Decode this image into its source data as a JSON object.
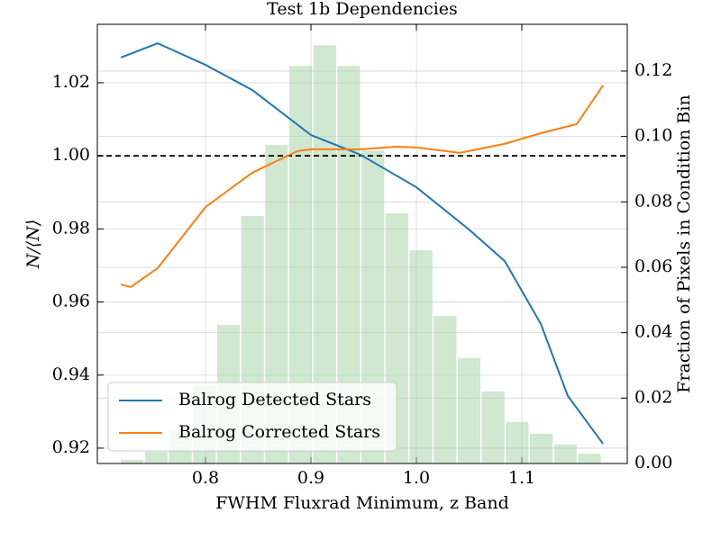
{
  "chart_data": {
    "type": "bar-line",
    "title": "Test 1b Dependencies",
    "x_label": "FWHM Fluxrad Minimum, z Band",
    "y_label": "N/⟨N⟩",
    "y2_label": "Fraction of Pixels in Condition Bin",
    "xlim": [
      0.6974,
      1.2
    ],
    "xticks": [
      0.8,
      0.9,
      {
        "value": 1,
        "label": "1.0"
      },
      1.1
    ],
    "ylim": [
      0.9158,
      1.036
    ],
    "yticks": [
      0.92,
      0.94,
      0.96,
      0.98,
      {
        "value": 1,
        "label": "1.00"
      },
      1.02
    ],
    "y2lim": [
      0,
      0.1343
    ],
    "y2ticks": [
      {
        "value": 0,
        "label": "0.00"
      },
      0.02,
      0.04,
      0.06,
      0.08,
      {
        "value": 0.1,
        "label": "0.10"
      },
      0.12
    ],
    "grid": true,
    "hline": 1,
    "legend": "lower left",
    "histogram": {
      "axis": "y2",
      "color": "#a9d4a9",
      "bins": [
        0.7197,
        0.7425,
        0.7653,
        0.7882,
        0.811,
        0.8338,
        0.8566,
        0.8794,
        0.9023,
        0.9251,
        0.9479,
        0.9707,
        0.9935,
        1.0164,
        1.0392,
        1.062,
        1.0848,
        1.1076,
        1.1305,
        1.1533,
        1.1761
      ],
      "values": [
        0.0011,
        0.0036,
        0.0102,
        0.0239,
        0.0424,
        0.0757,
        0.0974,
        0.1216,
        0.1279,
        0.1216,
        0.0957,
        0.0765,
        0.0652,
        0.0451,
        0.0322,
        0.022,
        0.0127,
        0.0091,
        0.0058,
        0.003
      ]
    },
    "series": [
      {
        "name": "Balrog Detected Stars",
        "color": "#1f77b4",
        "x": [
          0.7197,
          0.7547,
          0.8,
          0.8444,
          0.9,
          0.947,
          1.0,
          1.0496,
          1.0838,
          1.118,
          1.1436,
          1.177
        ],
        "values": [
          1.0269,
          1.0308,
          1.0249,
          1.018,
          1.0057,
          1.0003,
          0.9914,
          0.9799,
          0.9712,
          0.954,
          0.9343,
          0.9212
        ]
      },
      {
        "name": "Balrog Corrected Stars",
        "color": "#ff7f0e",
        "x": [
          0.7197,
          0.7291,
          0.7547,
          0.8,
          0.8444,
          0.8872,
          0.9,
          0.947,
          0.9812,
          1.0,
          1.041,
          1.0838,
          1.118,
          1.1521,
          1.177
        ],
        "values": [
          0.9648,
          0.9641,
          0.9693,
          0.986,
          0.9954,
          1.0013,
          1.0018,
          1.0018,
          1.0025,
          1.0023,
          1.0008,
          1.0033,
          1.0062,
          1.0087,
          1.0193
        ]
      }
    ]
  }
}
